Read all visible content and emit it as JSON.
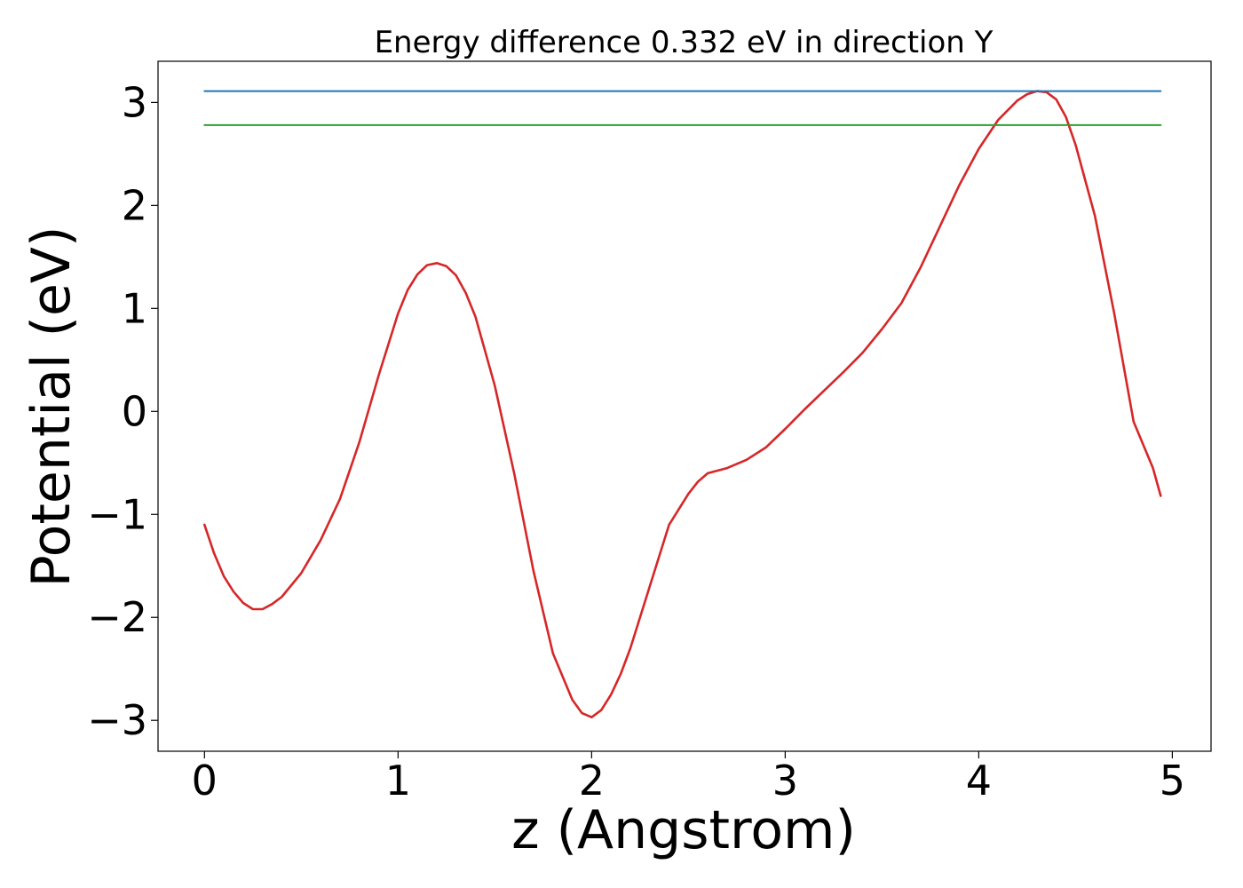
{
  "chart_data": {
    "type": "line",
    "title": "Energy difference 0.332 eV in direction Y",
    "xlabel": "z (Angstrom)",
    "ylabel": "Potential (eV)",
    "xlim": [
      -0.24,
      5.2
    ],
    "ylim": [
      -3.3,
      3.4
    ],
    "x_ticks": [
      0,
      1,
      2,
      3,
      4,
      5
    ],
    "x_tick_labels": [
      "0",
      "1",
      "2",
      "3",
      "4",
      "5"
    ],
    "y_ticks": [
      3,
      2,
      1,
      0,
      -1,
      -2,
      -3
    ],
    "y_tick_labels": [
      "3",
      "2",
      "1",
      "0",
      "−1",
      "−2",
      "−3"
    ],
    "grid": false,
    "series": [
      {
        "color": "#d62728",
        "x": [
          0.0,
          0.05,
          0.1,
          0.15,
          0.2,
          0.25,
          0.3,
          0.35,
          0.4,
          0.5,
          0.6,
          0.7,
          0.8,
          0.9,
          1.0,
          1.05,
          1.1,
          1.15,
          1.2,
          1.25,
          1.3,
          1.35,
          1.4,
          1.5,
          1.6,
          1.7,
          1.8,
          1.9,
          1.95,
          2.0,
          2.05,
          2.1,
          2.15,
          2.2,
          2.3,
          2.4,
          2.5,
          2.55,
          2.6,
          2.7,
          2.8,
          2.9,
          3.0,
          3.1,
          3.2,
          3.3,
          3.4,
          3.5,
          3.6,
          3.7,
          3.8,
          3.9,
          4.0,
          4.1,
          4.2,
          4.25,
          4.3,
          4.35,
          4.4,
          4.45,
          4.5,
          4.6,
          4.7,
          4.8,
          4.9,
          4.94
        ],
        "y": [
          -1.1,
          -1.38,
          -1.6,
          -1.75,
          -1.86,
          -1.92,
          -1.92,
          -1.87,
          -1.8,
          -1.57,
          -1.25,
          -0.85,
          -0.3,
          0.35,
          0.95,
          1.18,
          1.33,
          1.42,
          1.44,
          1.41,
          1.32,
          1.15,
          0.92,
          0.25,
          -0.6,
          -1.55,
          -2.35,
          -2.8,
          -2.93,
          -2.97,
          -2.9,
          -2.75,
          -2.55,
          -2.3,
          -1.7,
          -1.1,
          -0.8,
          -0.68,
          -0.6,
          -0.55,
          -0.47,
          -0.35,
          -0.17,
          0.02,
          0.2,
          0.38,
          0.57,
          0.8,
          1.05,
          1.4,
          1.8,
          2.2,
          2.55,
          2.83,
          3.02,
          3.08,
          3.11,
          3.1,
          3.03,
          2.86,
          2.59,
          1.9,
          0.95,
          -0.1,
          -0.55,
          -0.82
        ]
      },
      {
        "color": "#1f77b4",
        "x": [
          0.0,
          4.94
        ],
        "y": [
          3.11,
          3.11
        ]
      },
      {
        "color": "#2ca02c",
        "x": [
          0.0,
          4.94
        ],
        "y": [
          2.78,
          2.78
        ]
      }
    ]
  }
}
